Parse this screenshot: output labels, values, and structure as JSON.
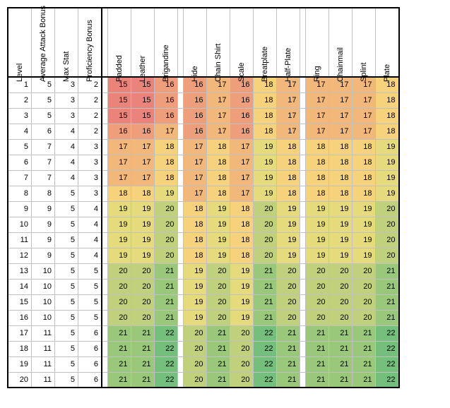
{
  "type": "heatmap-table",
  "background_color": "#ffffff",
  "border_color": "#000000",
  "grid_color": "#c0c0c0",
  "font_family": "Arial",
  "cell_fontsize": 11,
  "header_fontsize": 11,
  "color_scale": {
    "min_value": 15,
    "max_value": 22,
    "low_color": "#ea847a",
    "mid_color": "#f8df7c",
    "high_color": "#73bf7b"
  },
  "stat_columns": [
    "Level",
    "Average Attack Bonus",
    "Max Stat",
    "Proficiency Bonus"
  ],
  "armor_groups": [
    {
      "name": "light",
      "columns": [
        "Padded",
        "Leather",
        "Brigandine"
      ]
    },
    {
      "name": "medium",
      "columns": [
        "Hide",
        "Chain Shirt",
        "Scale",
        "Breatplate",
        "Half-Plate"
      ]
    },
    {
      "name": "heavy",
      "columns": [
        "Ring",
        "Chainmail",
        "Splint",
        "Plate"
      ]
    }
  ],
  "rows": [
    {
      "stats": [
        1,
        5,
        3,
        2
      ],
      "light": [
        15,
        15,
        16
      ],
      "medium": [
        16,
        17,
        16,
        18,
        17
      ],
      "heavy": [
        17,
        17,
        17,
        18
      ]
    },
    {
      "stats": [
        2,
        5,
        3,
        2
      ],
      "light": [
        15,
        15,
        16
      ],
      "medium": [
        16,
        17,
        16,
        18,
        17
      ],
      "heavy": [
        17,
        17,
        17,
        18
      ]
    },
    {
      "stats": [
        3,
        5,
        3,
        2
      ],
      "light": [
        15,
        15,
        16
      ],
      "medium": [
        16,
        17,
        16,
        18,
        17
      ],
      "heavy": [
        17,
        17,
        17,
        18
      ]
    },
    {
      "stats": [
        4,
        6,
        4,
        2
      ],
      "light": [
        16,
        16,
        17
      ],
      "medium": [
        16,
        17,
        16,
        18,
        17
      ],
      "heavy": [
        17,
        17,
        17,
        18
      ]
    },
    {
      "stats": [
        5,
        7,
        4,
        3
      ],
      "light": [
        17,
        17,
        18
      ],
      "medium": [
        17,
        18,
        17,
        19,
        18
      ],
      "heavy": [
        18,
        18,
        18,
        19
      ]
    },
    {
      "stats": [
        6,
        7,
        4,
        3
      ],
      "light": [
        17,
        17,
        18
      ],
      "medium": [
        17,
        18,
        17,
        19,
        18
      ],
      "heavy": [
        18,
        18,
        18,
        19
      ]
    },
    {
      "stats": [
        7,
        7,
        4,
        3
      ],
      "light": [
        17,
        17,
        18
      ],
      "medium": [
        17,
        18,
        17,
        19,
        18
      ],
      "heavy": [
        18,
        18,
        18,
        19
      ]
    },
    {
      "stats": [
        8,
        8,
        5,
        3
      ],
      "light": [
        18,
        18,
        19
      ],
      "medium": [
        17,
        18,
        17,
        19,
        18
      ],
      "heavy": [
        18,
        18,
        18,
        19
      ]
    },
    {
      "stats": [
        9,
        9,
        5,
        4
      ],
      "light": [
        19,
        19,
        20
      ],
      "medium": [
        18,
        19,
        18,
        20,
        19
      ],
      "heavy": [
        19,
        19,
        19,
        20
      ]
    },
    {
      "stats": [
        10,
        9,
        5,
        4
      ],
      "light": [
        19,
        19,
        20
      ],
      "medium": [
        18,
        19,
        18,
        20,
        19
      ],
      "heavy": [
        19,
        19,
        19,
        20
      ]
    },
    {
      "stats": [
        11,
        9,
        5,
        4
      ],
      "light": [
        19,
        19,
        20
      ],
      "medium": [
        18,
        19,
        18,
        20,
        19
      ],
      "heavy": [
        19,
        19,
        19,
        20
      ]
    },
    {
      "stats": [
        12,
        9,
        5,
        4
      ],
      "light": [
        19,
        19,
        20
      ],
      "medium": [
        18,
        19,
        18,
        20,
        19
      ],
      "heavy": [
        19,
        19,
        19,
        20
      ]
    },
    {
      "stats": [
        13,
        10,
        5,
        5
      ],
      "light": [
        20,
        20,
        21
      ],
      "medium": [
        19,
        20,
        19,
        21,
        20
      ],
      "heavy": [
        20,
        20,
        20,
        21
      ]
    },
    {
      "stats": [
        14,
        10,
        5,
        5
      ],
      "light": [
        20,
        20,
        21
      ],
      "medium": [
        19,
        20,
        19,
        21,
        20
      ],
      "heavy": [
        20,
        20,
        20,
        21
      ]
    },
    {
      "stats": [
        15,
        10,
        5,
        5
      ],
      "light": [
        20,
        20,
        21
      ],
      "medium": [
        19,
        20,
        19,
        21,
        20
      ],
      "heavy": [
        20,
        20,
        20,
        21
      ]
    },
    {
      "stats": [
        16,
        10,
        5,
        5
      ],
      "light": [
        20,
        20,
        21
      ],
      "medium": [
        19,
        20,
        19,
        21,
        20
      ],
      "heavy": [
        20,
        20,
        20,
        21
      ]
    },
    {
      "stats": [
        17,
        11,
        5,
        6
      ],
      "light": [
        21,
        21,
        22
      ],
      "medium": [
        20,
        21,
        20,
        22,
        21
      ],
      "heavy": [
        21,
        21,
        21,
        22
      ]
    },
    {
      "stats": [
        18,
        11,
        5,
        6
      ],
      "light": [
        21,
        21,
        22
      ],
      "medium": [
        20,
        21,
        20,
        22,
        21
      ],
      "heavy": [
        21,
        21,
        21,
        22
      ]
    },
    {
      "stats": [
        19,
        11,
        5,
        6
      ],
      "light": [
        21,
        21,
        22
      ],
      "medium": [
        20,
        21,
        20,
        22,
        21
      ],
      "heavy": [
        21,
        21,
        21,
        22
      ]
    },
    {
      "stats": [
        20,
        11,
        5,
        6
      ],
      "light": [
        21,
        21,
        22
      ],
      "medium": [
        20,
        21,
        20,
        22,
        21
      ],
      "heavy": [
        21,
        21,
        21,
        22
      ]
    }
  ]
}
